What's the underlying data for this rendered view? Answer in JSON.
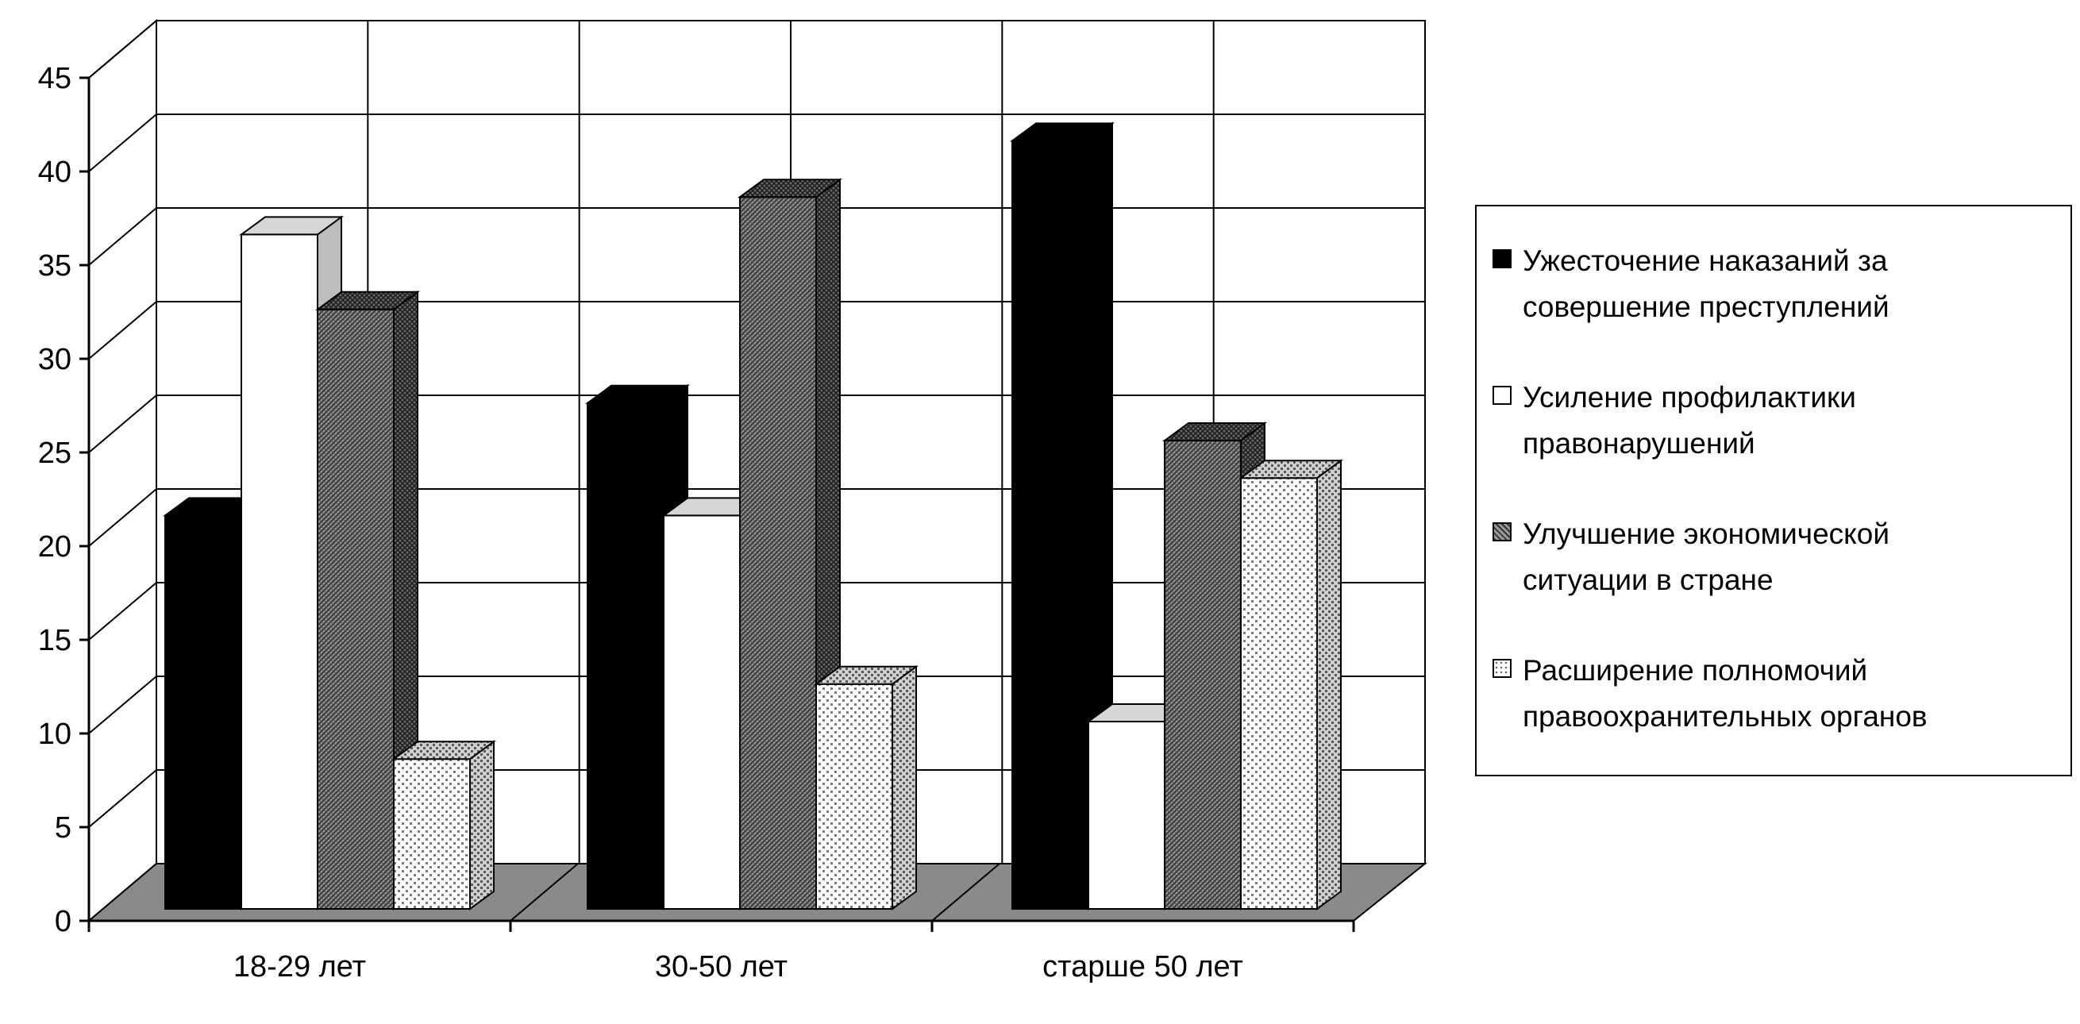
{
  "chart_data": {
    "type": "bar",
    "title": "",
    "xlabel": "",
    "ylabel": "",
    "ylim": [
      0,
      45
    ],
    "yticks": [
      "0",
      "5",
      "10",
      "15",
      "20",
      "25",
      "30",
      "35",
      "40",
      "45"
    ],
    "categories": [
      "18-29 лет",
      "30-50 лет",
      "старше 50 лет"
    ],
    "series": [
      {
        "name": "Ужесточение наказаний за совершение преступлений",
        "fill": "solid-black",
        "values": [
          21,
          27,
          41
        ]
      },
      {
        "name": "Усиление профилактики правонарушений",
        "fill": "white",
        "values": [
          36,
          21,
          10
        ]
      },
      {
        "name": "Улучшение экономической ситуации в стране",
        "fill": "dark-crosshatch",
        "values": [
          32,
          38,
          25
        ]
      },
      {
        "name": "Расширение полномочий правоохранительных органов",
        "fill": "light-dotted",
        "values": [
          8,
          12,
          23
        ]
      }
    ],
    "grid": true,
    "legend_position": "right",
    "style": "3d-clustered-column"
  }
}
